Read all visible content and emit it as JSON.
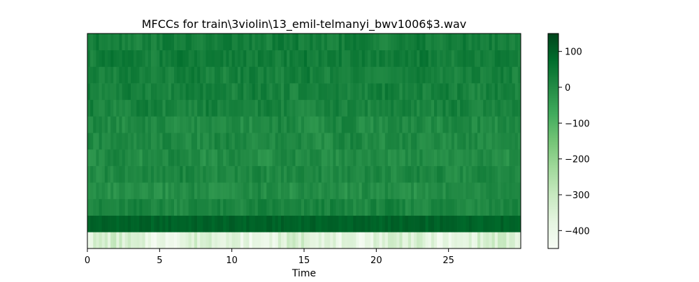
{
  "chart_data": {
    "type": "heatmap",
    "title": "MFCCs for train\\3violin\\13_emil-telmanyi_bwv1006$3.wav",
    "xlabel": "Time",
    "ylabel": "",
    "xlim": [
      0,
      30
    ],
    "x_ticks": [
      0,
      5,
      10,
      15,
      20,
      25
    ],
    "x_tick_labels": [
      "0",
      "5",
      "10",
      "15",
      "20",
      "25"
    ],
    "colormap": "Greens",
    "colormap_stops": [
      "#f7fcf5",
      "#e5f5e0",
      "#c7e9c0",
      "#a1d99b",
      "#74c476",
      "#41ab5d",
      "#238b45",
      "#006d2c",
      "#00441b"
    ],
    "colorbar": {
      "min": -450,
      "max": 150,
      "ticks": [
        100,
        0,
        -100,
        -200,
        -300,
        -400
      ],
      "tick_labels": [
        "100",
        "0",
        "−100",
        "−200",
        "−300",
        "−400"
      ]
    },
    "n_coefficients": 13,
    "n_frames": 150,
    "row_means_bottom_to_top": [
      -370,
      95,
      15,
      -5,
      10,
      0,
      5,
      5,
      20,
      25,
      25,
      35,
      30
    ],
    "grid": false
  }
}
